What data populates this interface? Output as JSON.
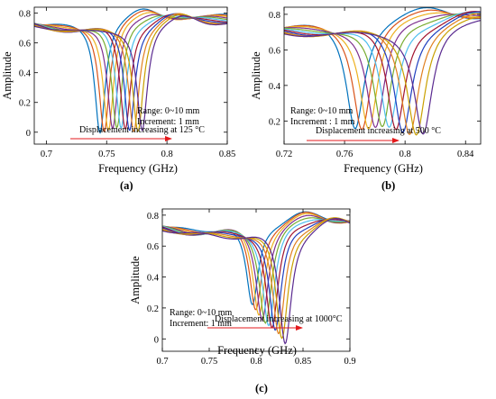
{
  "figure": {
    "colors": [
      "#0072BD",
      "#D95319",
      "#EDB120",
      "#7E2F8E",
      "#77AC30",
      "#4DBEEE",
      "#A2142F",
      "#1f3fbf",
      "#e08020",
      "#c9a000",
      "#5a2a90"
    ]
  },
  "chart_data": [
    {
      "type": "line",
      "panel_label": "(a)",
      "xlabel": "Frequency (GHz)",
      "ylabel": "Amplitude",
      "xlim": [
        0.69,
        0.85
      ],
      "ylim": [
        -0.08,
        0.84
      ],
      "xticks": [
        0.7,
        0.75,
        0.8,
        0.85
      ],
      "xtick_labels": [
        "0.7",
        "0.75",
        "0.8",
        "0.85"
      ],
      "yticks": [
        0,
        0.2,
        0.4,
        0.6,
        0.8
      ],
      "ytick_labels": [
        "0",
        "0.2",
        "0.4",
        "0.6",
        "0.8"
      ],
      "grid": false,
      "annotations": [
        "Range: 0~10 mm",
        "Increment: 1 mm"
      ],
      "arrow_text": "Displacement increasing at 125 °C",
      "series_params": {
        "resonance_start": 0.7445,
        "resonance_step": 0.0035,
        "min_amplitude_start": 0.02,
        "min_amplitude_step": 0.005,
        "baseline": 0.78,
        "notch_depth_width": 0.016
      }
    },
    {
      "type": "line",
      "panel_label": "(b)",
      "xlabel": "Frequency (GHz)",
      "ylabel": "Amplitude",
      "xlim": [
        0.72,
        0.85
      ],
      "ylim": [
        0.07,
        0.84
      ],
      "xticks": [
        0.72,
        0.76,
        0.8,
        0.84
      ],
      "xtick_labels": [
        "0.72",
        "0.76",
        "0.8",
        "0.84"
      ],
      "yticks": [
        0.2,
        0.4,
        0.6,
        0.8
      ],
      "ytick_labels": [
        "0.2",
        "0.4",
        "0.6",
        "0.8"
      ],
      "grid": false,
      "annotations": [
        "Range: 0~10 mm",
        "Increment : 1 mm"
      ],
      "arrow_text": "Displacement increasing at 500 °C",
      "series_params": {
        "resonance_start": 0.767,
        "resonance_step": 0.0045,
        "min_amplitude_start": 0.18,
        "min_amplitude_step": 0.0,
        "baseline": 0.79,
        "notch_depth_width": 0.022
      }
    },
    {
      "type": "line",
      "panel_label": "(c)",
      "xlabel": "Frequency (GHz)",
      "ylabel": "Amplitude",
      "xlim": [
        0.7,
        0.9
      ],
      "ylim": [
        -0.08,
        0.84
      ],
      "xticks": [
        0.7,
        0.75,
        0.8,
        0.85,
        0.9
      ],
      "xtick_labels": [
        "0.7",
        "0.75",
        "0.8",
        "0.85",
        "0.9"
      ],
      "yticks": [
        0,
        0.2,
        0.4,
        0.6,
        0.8
      ],
      "ytick_labels": [
        "0",
        "0.2",
        "0.4",
        "0.6",
        "0.8"
      ],
      "grid": false,
      "annotations": [
        "Range: 0~10 mm",
        "Increment: 1 mm"
      ],
      "arrow_text": "Displacement increasing at 1000°C",
      "series_params": {
        "resonance_start": 0.796,
        "resonance_step": 0.0035,
        "min_amplitude_start": 0.22,
        "min_amplitude_step": -0.02,
        "baseline": 0.77,
        "notch_depth_width": 0.024
      }
    }
  ]
}
